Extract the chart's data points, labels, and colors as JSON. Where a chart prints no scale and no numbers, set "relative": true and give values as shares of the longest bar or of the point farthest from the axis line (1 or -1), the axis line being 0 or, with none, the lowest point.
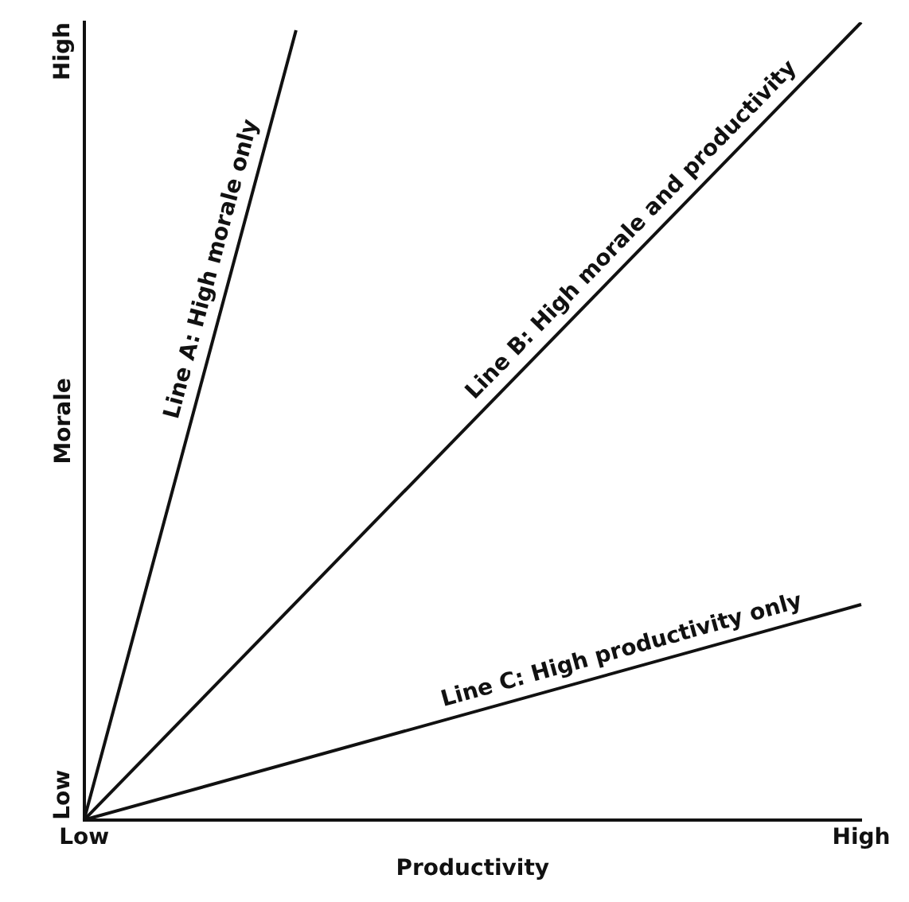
{
  "chart_data": {
    "type": "line",
    "relative": true,
    "xlabel": "Productivity",
    "ylabel": "Morale",
    "categories": [
      "Low",
      null,
      null,
      null,
      null,
      null,
      null,
      null,
      null,
      null,
      null,
      "High"
    ],
    "annotations": [
      "Low",
      "High"
    ],
    "grid": false,
    "legend": false,
    "marker": "none",
    "line_style": "solid",
    "series": [
      {
        "name": "Line A: High morale only",
        "color": "#111111",
        "values": [
          0,
          null,
          null,
          0.99,
          null,
          null,
          null,
          null,
          null,
          null,
          null,
          null
        ]
      },
      {
        "name": "Line B: High morale and productivity",
        "color": "#111111",
        "values": [
          0,
          null,
          null,
          null,
          null,
          null,
          null,
          null,
          null,
          null,
          null,
          1
        ]
      },
      {
        "name": "Line C: High productivity only",
        "color": "#111111",
        "values": [
          0,
          null,
          null,
          null,
          null,
          null,
          null,
          null,
          null,
          null,
          null,
          0.27
        ]
      }
    ]
  }
}
